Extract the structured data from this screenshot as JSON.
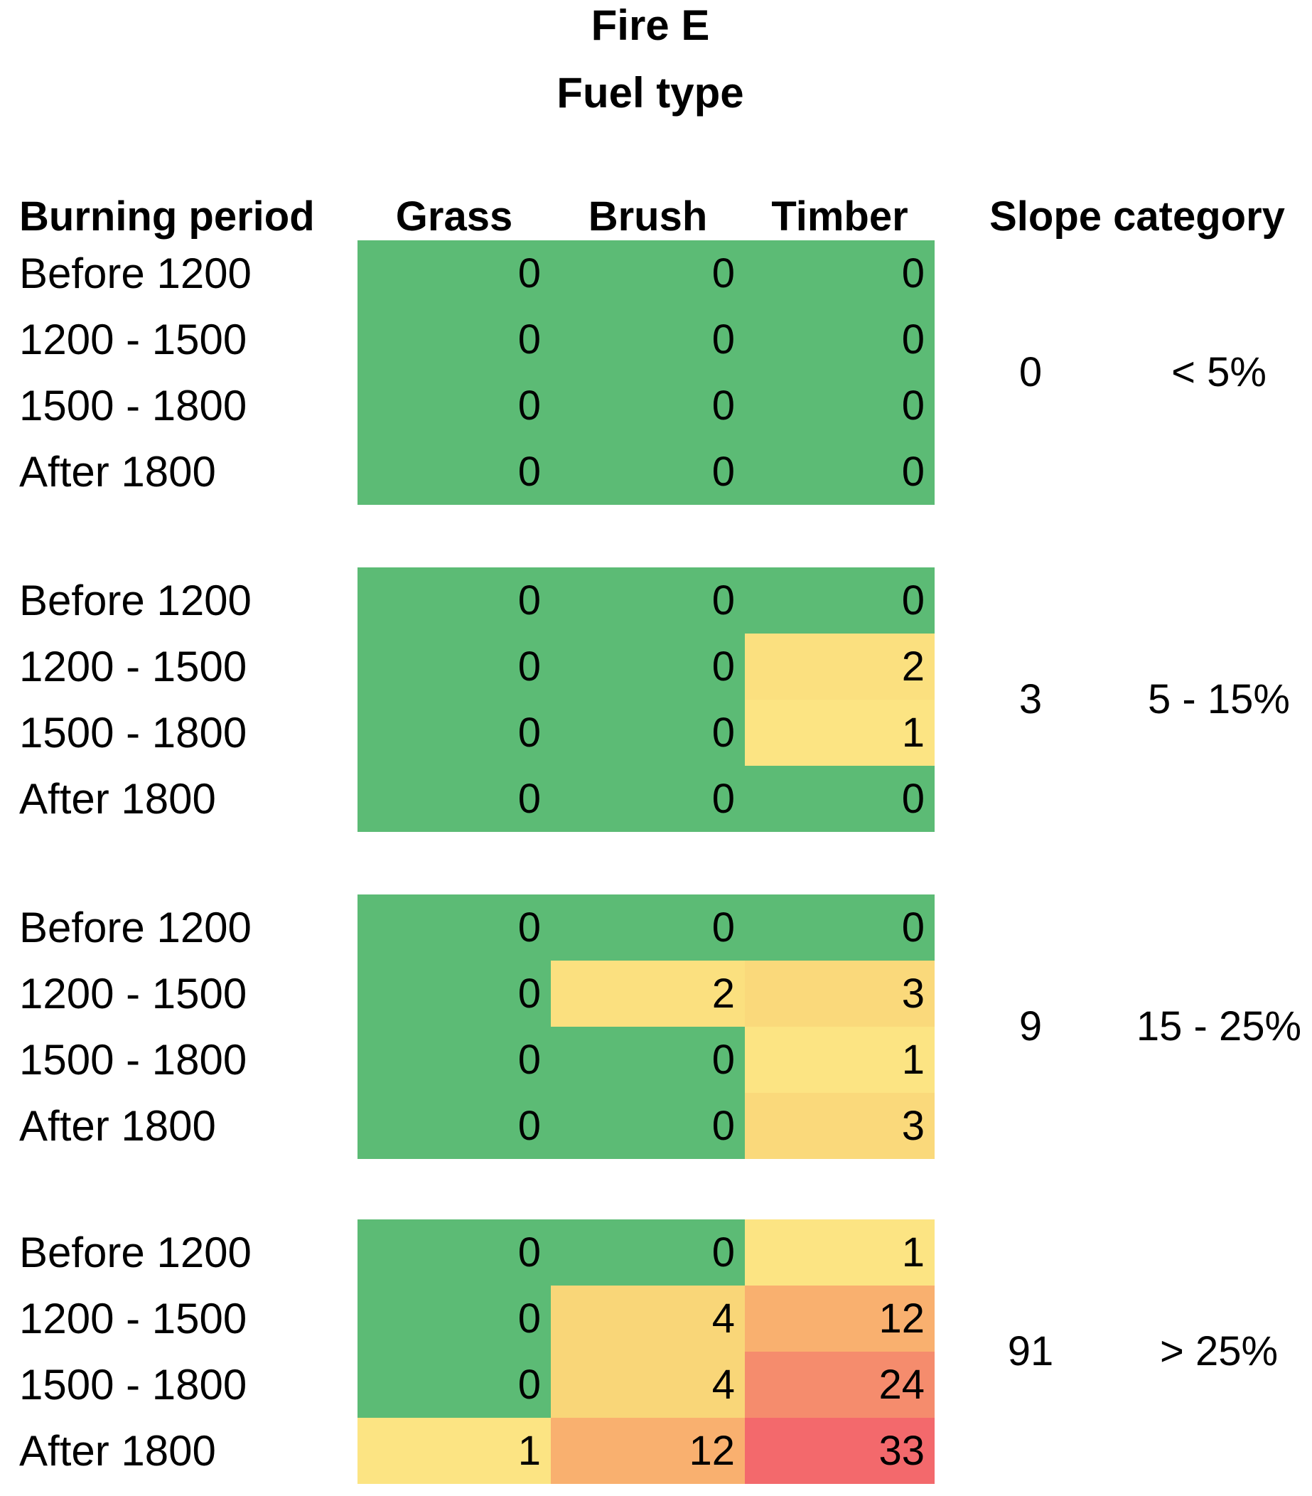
{
  "title": {
    "line1": "Fire E",
    "line2": "Fuel type"
  },
  "headers": {
    "burning_period": "Burning period",
    "fuel_columns": [
      "Grass",
      "Brush",
      "Timber"
    ],
    "slope_category": "Slope category"
  },
  "colors": {
    "background": "#FFFFFF",
    "text": "#000000",
    "scale_green": "#5CBB75",
    "scale_yellow": "#FCE483",
    "scale_red": "#F3696C"
  },
  "blocks": [
    {
      "slope_value": "0",
      "slope_range": "< 5%",
      "rows": [
        {
          "label": "Before 1200",
          "cells": [
            {
              "v": "0",
              "bg": "#5CBB75"
            },
            {
              "v": "0",
              "bg": "#5CBB75"
            },
            {
              "v": "0",
              "bg": "#5CBB75"
            }
          ]
        },
        {
          "label": "1200 - 1500",
          "cells": [
            {
              "v": "0",
              "bg": "#5CBB75"
            },
            {
              "v": "0",
              "bg": "#5CBB75"
            },
            {
              "v": "0",
              "bg": "#5CBB75"
            }
          ]
        },
        {
          "label": "1500 - 1800",
          "cells": [
            {
              "v": "0",
              "bg": "#5CBB75"
            },
            {
              "v": "0",
              "bg": "#5CBB75"
            },
            {
              "v": "0",
              "bg": "#5CBB75"
            }
          ]
        },
        {
          "label": "After 1800",
          "cells": [
            {
              "v": "0",
              "bg": "#5CBB75"
            },
            {
              "v": "0",
              "bg": "#5CBB75"
            },
            {
              "v": "0",
              "bg": "#5CBB75"
            }
          ]
        }
      ]
    },
    {
      "slope_value": "3",
      "slope_range": "5 - 15%",
      "rows": [
        {
          "label": "Before 1200",
          "cells": [
            {
              "v": "0",
              "bg": "#5CBB75"
            },
            {
              "v": "0",
              "bg": "#5CBB75"
            },
            {
              "v": "0",
              "bg": "#5CBB75"
            }
          ]
        },
        {
          "label": "1200 - 1500",
          "cells": [
            {
              "v": "0",
              "bg": "#5CBB75"
            },
            {
              "v": "0",
              "bg": "#5CBB75"
            },
            {
              "v": "2",
              "bg": "#FBE07F"
            }
          ]
        },
        {
          "label": "1500 - 1800",
          "cells": [
            {
              "v": "0",
              "bg": "#5CBB75"
            },
            {
              "v": "0",
              "bg": "#5CBB75"
            },
            {
              "v": "1",
              "bg": "#FCE483"
            }
          ]
        },
        {
          "label": "After 1800",
          "cells": [
            {
              "v": "0",
              "bg": "#5CBB75"
            },
            {
              "v": "0",
              "bg": "#5CBB75"
            },
            {
              "v": "0",
              "bg": "#5CBB75"
            }
          ]
        }
      ]
    },
    {
      "slope_value": "9",
      "slope_range": "15 - 25%",
      "rows": [
        {
          "label": "Before 1200",
          "cells": [
            {
              "v": "0",
              "bg": "#5CBB75"
            },
            {
              "v": "0",
              "bg": "#5CBB75"
            },
            {
              "v": "0",
              "bg": "#5CBB75"
            }
          ]
        },
        {
          "label": "1200 - 1500",
          "cells": [
            {
              "v": "0",
              "bg": "#5CBB75"
            },
            {
              "v": "2",
              "bg": "#FBE07F"
            },
            {
              "v": "3",
              "bg": "#FAD97B"
            }
          ]
        },
        {
          "label": "1500 - 1800",
          "cells": [
            {
              "v": "0",
              "bg": "#5CBB75"
            },
            {
              "v": "0",
              "bg": "#5CBB75"
            },
            {
              "v": "1",
              "bg": "#FCE483"
            }
          ]
        },
        {
          "label": "After 1800",
          "cells": [
            {
              "v": "0",
              "bg": "#5CBB75"
            },
            {
              "v": "0",
              "bg": "#5CBB75"
            },
            {
              "v": "3",
              "bg": "#FAD97B"
            }
          ]
        }
      ]
    },
    {
      "slope_value": "91",
      "slope_range": "> 25%",
      "rows": [
        {
          "label": "Before 1200",
          "cells": [
            {
              "v": "0",
              "bg": "#5CBB75"
            },
            {
              "v": "0",
              "bg": "#5CBB75"
            },
            {
              "v": "1",
              "bg": "#FCE483"
            }
          ]
        },
        {
          "label": "1200 - 1500",
          "cells": [
            {
              "v": "0",
              "bg": "#5CBB75"
            },
            {
              "v": "4",
              "bg": "#F9D678"
            },
            {
              "v": "12",
              "bg": "#F9B06F"
            }
          ]
        },
        {
          "label": "1500 - 1800",
          "cells": [
            {
              "v": "0",
              "bg": "#5CBB75"
            },
            {
              "v": "4",
              "bg": "#F9D678"
            },
            {
              "v": "24",
              "bg": "#F58C6D"
            }
          ]
        },
        {
          "label": "After 1800",
          "cells": [
            {
              "v": "1",
              "bg": "#FCE483"
            },
            {
              "v": "12",
              "bg": "#F9B06F"
            },
            {
              "v": "33",
              "bg": "#F3696C"
            }
          ]
        }
      ]
    }
  ],
  "chart_data": {
    "type": "heatmap",
    "title": "Fire E",
    "subtitle": "Fuel type",
    "x_categories": [
      "Grass",
      "Brush",
      "Timber"
    ],
    "y_categories": [
      "Before 1200",
      "1200 - 1500",
      "1500 - 1800",
      "After 1800"
    ],
    "row_label_header": "Burning period",
    "group_header": "Slope category",
    "groups": [
      {
        "slope_count": 0,
        "slope_range": "< 5%",
        "series": [
          {
            "name": "Before 1200",
            "values": [
              0,
              0,
              0
            ]
          },
          {
            "name": "1200 - 1500",
            "values": [
              0,
              0,
              0
            ]
          },
          {
            "name": "1500 - 1800",
            "values": [
              0,
              0,
              0
            ]
          },
          {
            "name": "After 1800",
            "values": [
              0,
              0,
              0
            ]
          }
        ]
      },
      {
        "slope_count": 3,
        "slope_range": "5 - 15%",
        "series": [
          {
            "name": "Before 1200",
            "values": [
              0,
              0,
              0
            ]
          },
          {
            "name": "1200 - 1500",
            "values": [
              0,
              0,
              2
            ]
          },
          {
            "name": "1500 - 1800",
            "values": [
              0,
              0,
              1
            ]
          },
          {
            "name": "After 1800",
            "values": [
              0,
              0,
              0
            ]
          }
        ]
      },
      {
        "slope_count": 9,
        "slope_range": "15 - 25%",
        "series": [
          {
            "name": "Before 1200",
            "values": [
              0,
              0,
              0
            ]
          },
          {
            "name": "1200 - 1500",
            "values": [
              0,
              2,
              3
            ]
          },
          {
            "name": "1500 - 1800",
            "values": [
              0,
              0,
              1
            ]
          },
          {
            "name": "After 1800",
            "values": [
              0,
              0,
              3
            ]
          }
        ]
      },
      {
        "slope_count": 91,
        "slope_range": "> 25%",
        "series": [
          {
            "name": "Before 1200",
            "values": [
              0,
              0,
              1
            ]
          },
          {
            "name": "1200 - 1500",
            "values": [
              0,
              4,
              12
            ]
          },
          {
            "name": "1500 - 1800",
            "values": [
              0,
              4,
              24
            ]
          },
          {
            "name": "After 1800",
            "values": [
              1,
              12,
              33
            ]
          }
        ]
      }
    ],
    "color_scale": {
      "min_value": 0,
      "min_color": "#5CBB75",
      "low_mid_color": "#FCE483",
      "max_value": 33,
      "max_color": "#F3696C"
    },
    "grid": false,
    "legend": "none"
  }
}
